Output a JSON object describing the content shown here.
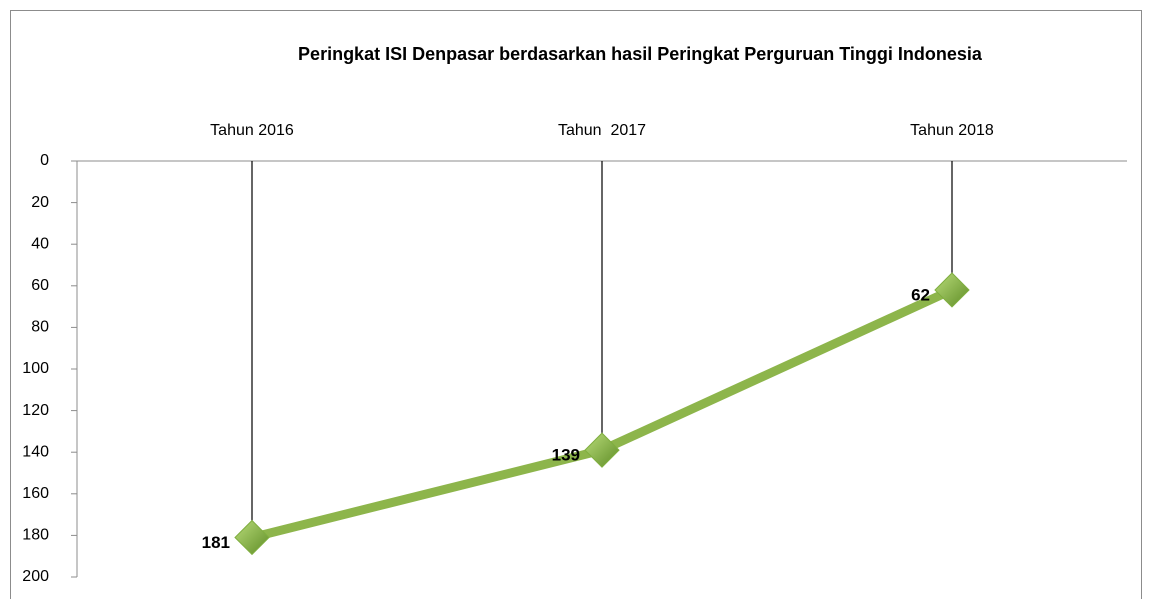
{
  "chart_data": {
    "type": "line",
    "title": "Peringkat ISI Denpasar berdasarkan hasil Peringkat Perguruan Tinggi Indonesia",
    "categories": [
      "Tahun 2016",
      "Tahun  2017",
      "Tahun 2018"
    ],
    "values": [
      181,
      139,
      62
    ],
    "color": "#8db54b",
    "marker_color": "#7fae3f",
    "ylim": [
      0,
      200
    ],
    "y_inverted": true,
    "yticks": [
      0,
      20,
      40,
      60,
      80,
      100,
      120,
      140,
      160,
      180,
      200
    ],
    "drop_lines": true,
    "grid": false
  }
}
